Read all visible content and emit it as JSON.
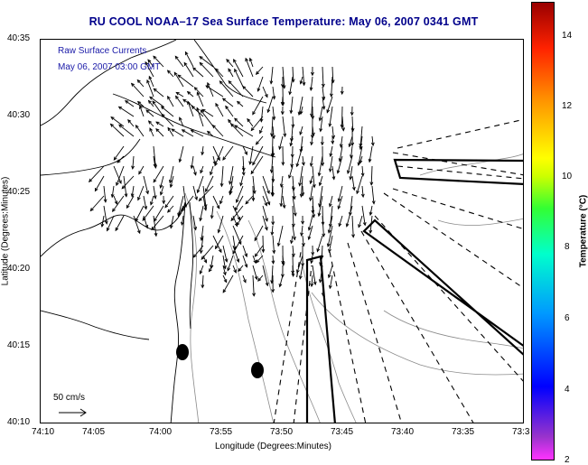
{
  "title": "RU COOL  NOAA–17  Sea Surface Temperature:  May 06, 2007 0341 GMT",
  "legend": {
    "line1": "Raw Surface Currents",
    "line2": "May 06, 2007 03:00 GMT"
  },
  "x_axis": {
    "label": "Longitude (Degrees:Minutes)",
    "ticks": [
      "74:10",
      "74:05",
      "74:00",
      "73:55",
      "73:50",
      "73:45",
      "73:40",
      "73:35",
      "73:3"
    ]
  },
  "y_axis": {
    "label": "Latitude (Degrees:Minutes)",
    "ticks": [
      "40:35",
      "40:30",
      "40:25",
      "40:20",
      "40:15",
      "40:10"
    ]
  },
  "scale_bar": {
    "label": "50 cm/s"
  },
  "colorbar": {
    "label": "Temperature (°C)",
    "ticks": [
      "14",
      "12",
      "10",
      "8",
      "6",
      "4",
      "2"
    ],
    "colors": {
      "low": "#ff33ff",
      "mid": "#33ff33",
      "high": "#990000"
    }
  },
  "colors": {
    "title": "#00008b",
    "legend_text": "#1a1aa8",
    "coastline": "#000000",
    "bathymetry": "#888888"
  }
}
